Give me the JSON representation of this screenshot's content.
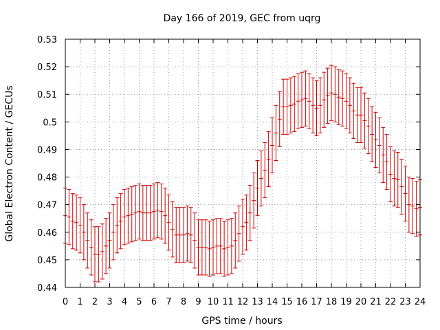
{
  "chart_data": {
    "type": "scatter",
    "title": "Day 166 of 2019, GEC from uqrg",
    "xlabel": "GPS time / hours",
    "ylabel": "Global Electron Content / GECUs",
    "xlim": [
      0,
      24
    ],
    "ylim": [
      0.44,
      0.53
    ],
    "xticks": [
      0,
      1,
      2,
      3,
      4,
      5,
      6,
      7,
      8,
      9,
      10,
      11,
      12,
      13,
      14,
      15,
      16,
      17,
      18,
      19,
      20,
      21,
      22,
      23,
      24
    ],
    "yticks": [
      0.44,
      0.45,
      0.46,
      0.47,
      0.48,
      0.49,
      0.5,
      0.51,
      0.52,
      0.53
    ],
    "ytick_labels": [
      "0.44",
      "0.45",
      "0.46",
      "0.47",
      "0.48",
      "0.49",
      "0.5",
      "0.51",
      "0.52",
      "0.53"
    ],
    "grid": true,
    "grid_style": "dotted",
    "series_color": "#cc0000",
    "error_bar": 0.01,
    "series": [
      {
        "x": [
          0.0,
          0.25,
          0.5,
          0.75,
          1.0,
          1.25,
          1.5,
          1.75,
          2.0,
          2.25,
          2.5,
          2.75,
          3.0,
          3.25,
          3.5,
          3.75,
          4.0,
          4.25,
          4.5,
          4.75,
          5.0,
          5.25,
          5.5,
          5.75,
          6.0,
          6.25,
          6.5,
          6.75,
          7.0,
          7.25,
          7.5,
          7.75,
          8.0,
          8.25,
          8.5,
          8.75,
          9.0,
          9.25,
          9.5,
          9.75,
          10.0,
          10.25,
          10.5,
          10.75,
          11.0,
          11.25,
          11.5,
          11.75,
          12.0,
          12.25,
          12.5,
          12.75,
          13.0,
          13.25,
          13.5,
          13.75,
          14.0,
          14.25,
          14.5,
          14.75,
          15.0,
          15.25,
          15.5,
          15.75,
          16.0,
          16.25,
          16.5,
          16.75,
          17.0,
          17.25,
          17.5,
          17.75,
          18.0,
          18.25,
          18.5,
          18.75,
          19.0,
          19.25,
          19.5,
          19.75,
          20.0,
          20.25,
          20.5,
          20.75,
          21.0,
          21.25,
          21.5,
          21.75,
          22.0,
          22.25,
          22.5,
          22.75,
          23.0,
          23.25,
          23.5,
          23.75,
          24.0
        ],
        "y": [
          0.466,
          0.4655,
          0.464,
          0.4635,
          0.4625,
          0.46,
          0.457,
          0.4545,
          0.452,
          0.452,
          0.453,
          0.455,
          0.457,
          0.46,
          0.4625,
          0.464,
          0.4655,
          0.466,
          0.4665,
          0.467,
          0.4675,
          0.467,
          0.467,
          0.467,
          0.4675,
          0.468,
          0.4675,
          0.466,
          0.4635,
          0.461,
          0.459,
          0.459,
          0.459,
          0.4595,
          0.459,
          0.457,
          0.4545,
          0.4545,
          0.4545,
          0.454,
          0.4545,
          0.455,
          0.455,
          0.454,
          0.4545,
          0.455,
          0.457,
          0.4595,
          0.462,
          0.4635,
          0.467,
          0.4715,
          0.476,
          0.4795,
          0.4825,
          0.4865,
          0.4915,
          0.496,
          0.501,
          0.5055,
          0.5055,
          0.506,
          0.5065,
          0.5075,
          0.508,
          0.5085,
          0.5075,
          0.506,
          0.505,
          0.506,
          0.508,
          0.5095,
          0.5105,
          0.51,
          0.509,
          0.5085,
          0.5075,
          0.506,
          0.504,
          0.5025,
          0.5025,
          0.5005,
          0.4985,
          0.4955,
          0.4935,
          0.4915,
          0.488,
          0.4855,
          0.481,
          0.4795,
          0.479,
          0.4765,
          0.474,
          0.47,
          0.4695,
          0.4685,
          0.469
        ]
      }
    ]
  }
}
